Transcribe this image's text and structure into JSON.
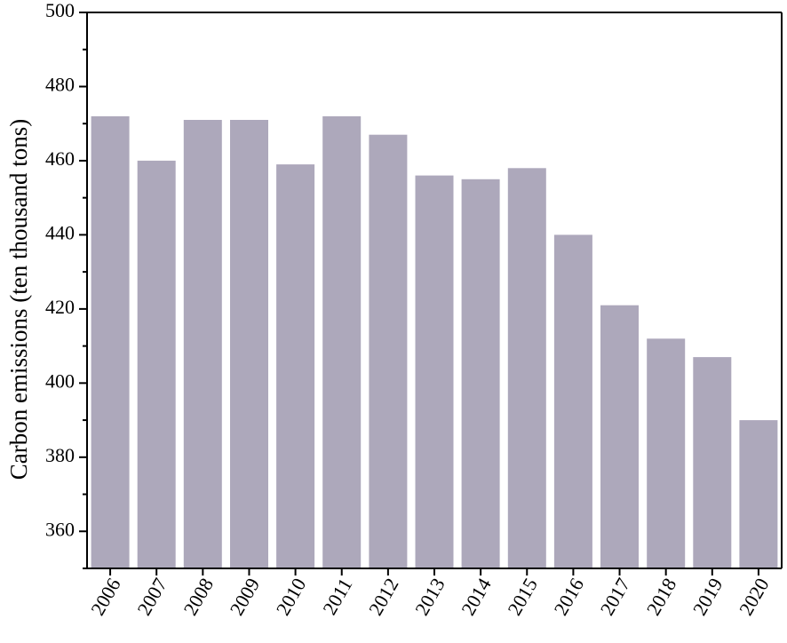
{
  "chart_data": {
    "type": "bar",
    "title": "",
    "xlabel": "",
    "ylabel": "Carbon emissions (ten thousand tons)",
    "categories": [
      "2006",
      "2007",
      "2008",
      "2009",
      "2010",
      "2011",
      "2012",
      "2013",
      "2014",
      "2015",
      "2016",
      "2017",
      "2018",
      "2019",
      "2020"
    ],
    "values": [
      472,
      460,
      471,
      471,
      459,
      472,
      467,
      456,
      455,
      458,
      440,
      421,
      412,
      407,
      390
    ],
    "ylim": [
      350,
      500
    ],
    "yticks": [
      360,
      380,
      400,
      420,
      440,
      460,
      480,
      500
    ],
    "bar_color": "#ada8bb",
    "grid": false,
    "legend": "none"
  }
}
